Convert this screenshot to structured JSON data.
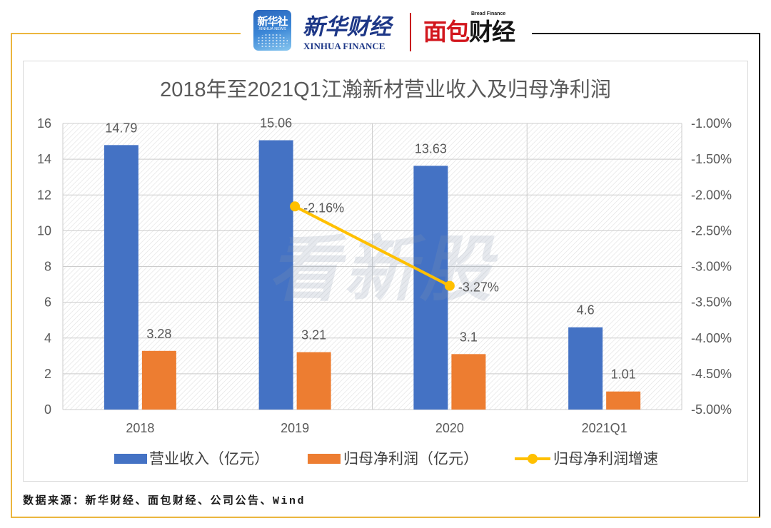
{
  "header": {
    "xinhua_news": {
      "name": "新华社",
      "name_en": "XINHUA NEWS"
    },
    "xinhua_finance": {
      "name": "新华财经",
      "name_en": "XINHUA FINANCE"
    },
    "bread_finance": {
      "name_accent": "面包",
      "name_rest": "财经",
      "name_en": "Bread Finance"
    }
  },
  "watermark": "看新股",
  "colors": {
    "frame_accent": "#EBB63E",
    "frame_dark": "#141414",
    "divider": "#C8161D"
  },
  "chart_data": {
    "type": "bar",
    "title": "2018年至2021Q1江瀚新材营业收入及归母净利润",
    "categories": [
      "2018",
      "2019",
      "2020",
      "2021Q1"
    ],
    "series": [
      {
        "name": "营业收入（亿元）",
        "type": "bar",
        "y_axis": "left",
        "color": "#4472C4",
        "values": [
          14.79,
          15.06,
          13.63,
          4.6
        ],
        "labels": [
          "14.79",
          "15.06",
          "13.63",
          "4.6"
        ]
      },
      {
        "name": "归母净利润（亿元）",
        "type": "bar",
        "y_axis": "left",
        "color": "#ED7D31",
        "values": [
          3.28,
          3.21,
          3.1,
          1.01
        ],
        "labels": [
          "3.28",
          "3.21",
          "3.1",
          "1.01"
        ]
      },
      {
        "name": "归母净利润增速",
        "type": "line",
        "y_axis": "right",
        "color": "#FFC000",
        "values": [
          null,
          -2.16,
          -3.27,
          null
        ],
        "labels": [
          null,
          "-2.16%",
          "-3.27%",
          null
        ]
      }
    ],
    "y_left": {
      "ylim": [
        0,
        16
      ],
      "ticks": [
        "0",
        "2",
        "4",
        "6",
        "8",
        "10",
        "12",
        "14",
        "16"
      ]
    },
    "y_right": {
      "ylim": [
        -5,
        -1
      ],
      "ticks": [
        "-5.00%",
        "-4.50%",
        "-4.00%",
        "-3.50%",
        "-3.00%",
        "-2.50%",
        "-2.00%",
        "-1.50%",
        "-1.00%"
      ]
    },
    "grid": true,
    "legend": "bottom"
  },
  "footer": {
    "source": "数据来源：新华财经、面包财经、公司公告、Wind"
  }
}
